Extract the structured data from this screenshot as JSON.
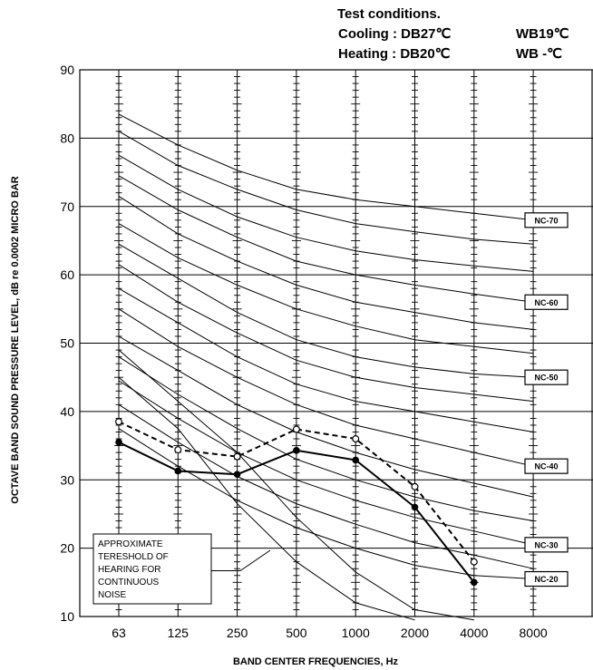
{
  "test_conditions": {
    "title": "Test conditions.",
    "cooling_label": "Cooling : DB27℃",
    "cooling_wb": "WB19℃",
    "heating_label": "Heating : DB20℃",
    "heating_wb": "WB -℃"
  },
  "chart_data": {
    "type": "line",
    "xlabel": "BAND CENTER FREQUENCIES, Hz",
    "ylabel": "OCTAVE BAND SOUND PRESSURE LEVEL, dB re 0.0002 MICRO BAR",
    "categories": [
      "63",
      "125",
      "250",
      "500",
      "1000",
      "2000",
      "4000",
      "8000"
    ],
    "ylim": [
      10,
      90
    ],
    "yticks": [
      10,
      20,
      30,
      40,
      50,
      60,
      70,
      80,
      90
    ],
    "grid": true,
    "series": [
      {
        "style": "solid",
        "marker": "filled-circle",
        "values": [
          35.5,
          31.3,
          30.8,
          34.3,
          32.9,
          26.0,
          15.0,
          null
        ]
      },
      {
        "style": "dashed",
        "marker": "open-circle",
        "values": [
          38.5,
          34.4,
          33.4,
          37.4,
          36.0,
          29.0,
          18.0,
          null
        ]
      }
    ],
    "nc_labels": [
      "NC-70",
      "NC-60",
      "NC-50",
      "NC-40",
      "NC-30",
      "NC-20"
    ],
    "nc_curves": [
      [
        83.5,
        79,
        75.3,
        72.5,
        71,
        70,
        69,
        68
      ],
      [
        81,
        76,
        72.5,
        69.5,
        67.5,
        66.3,
        65.2,
        64.5
      ],
      [
        77.5,
        72.5,
        68.5,
        65.5,
        63.5,
        62.2,
        61.3,
        60.5
      ],
      [
        74.5,
        69.5,
        65.5,
        62,
        60,
        58.5,
        57.2,
        56
      ],
      [
        71.5,
        66,
        62,
        58.5,
        56,
        54.5,
        53,
        52
      ],
      [
        67.5,
        62.5,
        58.5,
        55,
        52.5,
        50.5,
        49.5,
        48.5
      ],
      [
        64.5,
        59.5,
        54.5,
        50.5,
        48,
        46.5,
        45.5,
        45
      ],
      [
        61.5,
        56,
        51.5,
        47.5,
        45,
        43.5,
        42.5,
        41.5
      ],
      [
        58,
        53,
        48,
        44,
        41.5,
        40,
        38.5,
        37
      ],
      [
        55,
        49.5,
        45,
        41,
        38,
        36,
        34,
        32
      ],
      [
        51,
        46,
        41,
        37,
        34,
        31.5,
        29.5,
        27.5
      ],
      [
        48,
        42.5,
        37.5,
        33,
        30,
        27.5,
        25.5,
        24
      ],
      [
        44.5,
        39,
        34,
        30,
        27,
        24.5,
        22.5,
        20.5
      ],
      [
        41,
        35.5,
        30.5,
        26.5,
        23.5,
        20.8,
        19,
        17
      ],
      [
        37.5,
        32,
        27,
        23,
        20,
        17.5,
        16,
        15.5
      ],
      [
        49,
        41.5,
        34,
        24.5,
        16.5,
        11,
        9.5,
        null
      ],
      [
        45,
        37.5,
        26.5,
        18,
        12,
        9.5,
        null,
        null
      ]
    ],
    "annotation": {
      "lines": [
        "APPROXIMATE",
        "TERESHOLD OF",
        "HEARING FOR",
        "CONTINUOUS",
        "NOISE"
      ]
    }
  }
}
